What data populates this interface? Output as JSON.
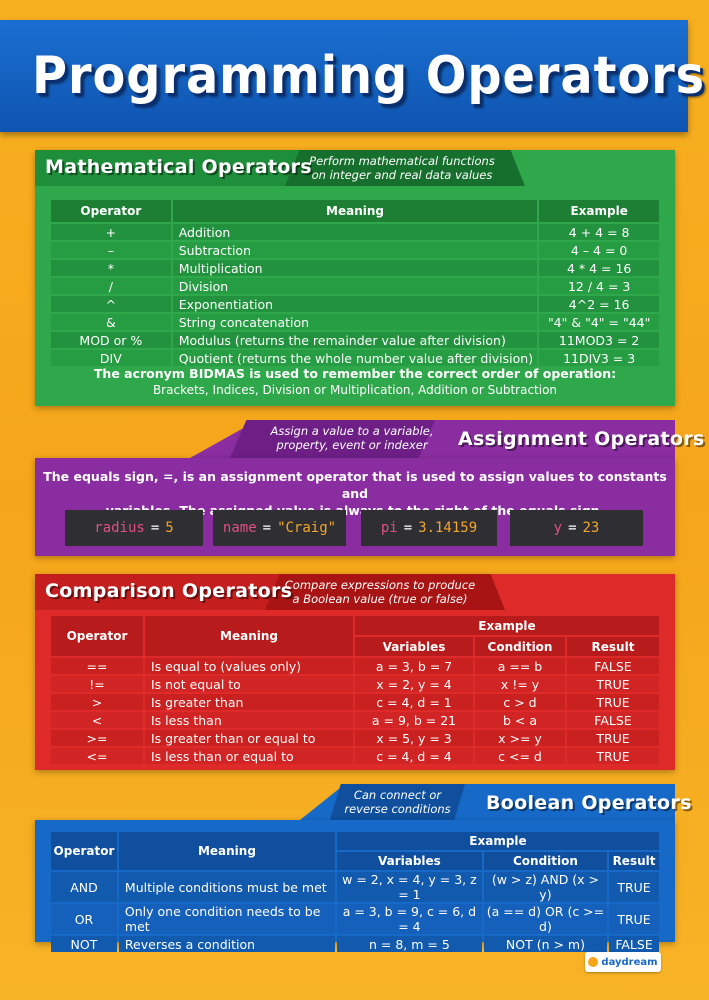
{
  "title": "Programming Operators",
  "math": {
    "heading": "Mathematical Operators",
    "desc1": "Perform mathematical functions",
    "desc2": "on integer and real data values",
    "headers": [
      "Operator",
      "Meaning",
      "Example"
    ],
    "rows": [
      [
        "+",
        "Addition",
        "4 + 4 = 8"
      ],
      [
        "–",
        "Subtraction",
        "4 – 4 = 0"
      ],
      [
        "*",
        "Multiplication",
        "4 * 4 = 16"
      ],
      [
        "/",
        "Division",
        "12 / 4 = 3"
      ],
      [
        "^",
        "Exponentiation",
        "4^2 = 16"
      ],
      [
        "&",
        "String concatenation",
        "\"4\" & \"4\" = \"44\""
      ],
      [
        "MOD or %",
        "Modulus (returns the remainder value after division)",
        "11MOD3 = 2"
      ],
      [
        "DIV",
        "Quotient (returns the whole number value after division)",
        "11DIV3 = 3"
      ]
    ],
    "note_pre": "The acronym ",
    "note_bold": "BIDMAS",
    "note_post": " is used to remember the correct order of operation:",
    "note_line2": "Brackets, Indices, Division or Multiplication, Addition or Subtraction"
  },
  "assign": {
    "heading": "Assignment Operators",
    "desc1": "Assign a value to a variable,",
    "desc2": "property, event or indexer",
    "text1": "The equals sign, =, is an assignment operator that is used to assign values to constants and",
    "text2": "variables. The assigned value is always to the right of the equals sign.",
    "codes": [
      {
        "var": "radius",
        "op": "=",
        "val": "5"
      },
      {
        "var": "name",
        "op": "=",
        "val": "\"Craig\""
      },
      {
        "var": "pi",
        "op": "=",
        "val": "3.14159"
      },
      {
        "var": "y",
        "op": "=",
        "val": "23"
      }
    ]
  },
  "comp": {
    "heading": "Comparison Operators",
    "desc1": "Compare expressions to produce",
    "desc2": "a Boolean value (true or false)",
    "h_operator": "Operator",
    "h_meaning": "Meaning",
    "h_example": "Example",
    "h_variables": "Variables",
    "h_condition": "Condition",
    "h_result": "Result",
    "rows": [
      [
        "==",
        "Is equal to (values only)",
        "a = 3, b = 7",
        "a == b",
        "FALSE"
      ],
      [
        "!=",
        "Is not equal to",
        "x = 2, y = 4",
        "x != y",
        "TRUE"
      ],
      [
        ">",
        "Is greater than",
        "c = 4, d = 1",
        "c > d",
        "TRUE"
      ],
      [
        "<",
        "Is less than",
        "a = 9, b = 21",
        "b < a",
        "FALSE"
      ],
      [
        ">=",
        "Is greater than or equal to",
        "x = 5, y = 3",
        "x >= y",
        "TRUE"
      ],
      [
        "<=",
        "Is less than or equal to",
        "c = 4, d = 4",
        "c <= d",
        "TRUE"
      ]
    ]
  },
  "bool": {
    "heading": "Boolean Operators",
    "desc1": "Can connect or",
    "desc2": "reverse conditions",
    "h_operator": "Operator",
    "h_meaning": "Meaning",
    "h_example": "Example",
    "h_variables": "Variables",
    "h_condition": "Condition",
    "h_result": "Result",
    "rows": [
      [
        "AND",
        "Multiple conditions must be met",
        "w = 2, x = 4, y = 3, z = 1",
        "(w > z) AND (x > y)",
        "TRUE"
      ],
      [
        "OR",
        "Only one condition needs to be met",
        "a = 3, b = 9, c = 6, d = 4",
        "(a == d) OR (c >= d)",
        "TRUE"
      ],
      [
        "NOT",
        "Reverses a condition",
        "n = 8, m = 5",
        "NOT (n > m)",
        "FALSE"
      ]
    ]
  },
  "logo": "daydream"
}
